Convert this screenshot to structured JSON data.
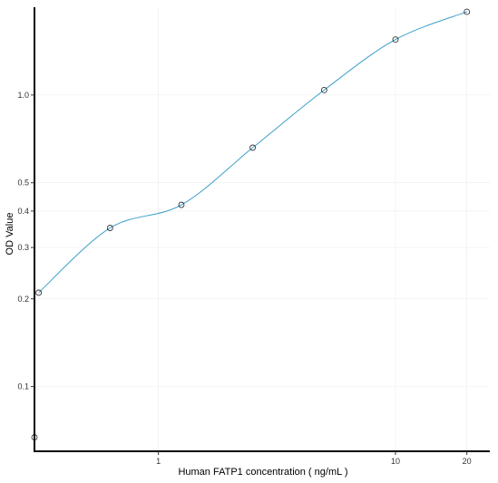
{
  "chart_data": {
    "type": "scatter",
    "xlabel": "Human FATP1 concentration ( ng/mL )",
    "ylabel": "OD Value",
    "x_scale": "log",
    "y_scale": "log",
    "xlim": [
      0.3,
      25
    ],
    "ylim": [
      0.06,
      2.0
    ],
    "x_ticks": [
      1,
      10,
      20
    ],
    "y_ticks": [
      0.1,
      0.2,
      0.3,
      0.4,
      0.5,
      1.0
    ],
    "x_tick_labels": [
      "1",
      "10",
      "20"
    ],
    "y_tick_labels": [
      "0.1",
      "0.2",
      "0.3",
      "0.4",
      "0.5",
      "1.0"
    ],
    "grid": true,
    "series": [
      {
        "points": [
          {
            "x": 0.3125,
            "y": 0.067
          },
          {
            "x": 0.3125,
            "y": 0.21
          },
          {
            "x": 0.625,
            "y": 0.35
          },
          {
            "x": 1.25,
            "y": 0.42
          },
          {
            "x": 2.5,
            "y": 0.66
          },
          {
            "x": 5,
            "y": 1.04
          },
          {
            "x": 10,
            "y": 1.55
          },
          {
            "x": 20,
            "y": 1.93
          }
        ],
        "fit_curve": true,
        "color": "#3a9fc9"
      }
    ]
  }
}
